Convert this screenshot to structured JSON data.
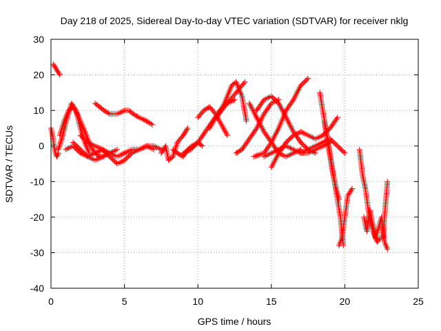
{
  "chart_data": {
    "type": "scatter",
    "title": "Day 218 of 2025, Sidereal Day-to-day VTEC variation (SDTVAR) for receiver nklg",
    "xlabel": "GPS time / hours",
    "ylabel": "SDTVAR / TECUs",
    "xlim": [
      0,
      25
    ],
    "ylim": [
      -40,
      30
    ],
    "xticks": [
      "0",
      "5",
      "10",
      "15",
      "20",
      "25"
    ],
    "yticks": [
      "30",
      "20",
      "10",
      "0",
      "-10",
      "-20",
      "-30",
      "-40"
    ],
    "grid": true,
    "marker": "plus",
    "color": "#ff0000",
    "tracks": [
      {
        "x": [
          0.0,
          0.1,
          0.2,
          0.3,
          0.4,
          0.5
        ],
        "y": [
          5,
          3,
          0,
          -2,
          -3,
          -2
        ]
      },
      {
        "x": [
          0.15,
          0.3,
          0.45,
          0.6
        ],
        "y": [
          23,
          22,
          21,
          20
        ]
      },
      {
        "x": [
          0.5,
          0.8,
          1.1,
          1.4,
          1.7,
          2.0,
          2.3,
          2.6
        ],
        "y": [
          -1,
          3,
          8,
          12,
          10,
          5,
          1,
          -2
        ]
      },
      {
        "x": [
          0.6,
          0.9,
          1.2,
          1.5,
          1.8,
          2.1,
          2.4,
          2.7,
          3.0,
          3.3,
          3.6
        ],
        "y": [
          3,
          7,
          10,
          11,
          9,
          6,
          3,
          0,
          -2,
          -3,
          -3
        ]
      },
      {
        "x": [
          1.0,
          1.5,
          2.0,
          2.5,
          3.0,
          3.5,
          4.0,
          4.5,
          5.0,
          5.5,
          6.0,
          6.5,
          7.0
        ],
        "y": [
          -1,
          0,
          -2,
          -3,
          -2,
          -1,
          -2,
          -3,
          -2,
          -1,
          -1,
          0,
          -1
        ]
      },
      {
        "x": [
          1.5,
          2.0,
          2.5,
          3.0,
          3.5,
          4.0,
          4.5
        ],
        "y": [
          1,
          -1,
          -3,
          -4,
          -3,
          -2,
          -1
        ]
      },
      {
        "x": [
          2.0,
          2.5,
          3.0,
          3.5,
          4.0
        ],
        "y": [
          3,
          1,
          0,
          -1,
          -2
        ]
      },
      {
        "x": [
          3.0,
          3.3,
          3.6,
          4.0,
          4.5,
          5.0,
          5.3,
          5.6,
          6.0,
          6.5,
          6.9
        ],
        "y": [
          12,
          11,
          10,
          9,
          9,
          10,
          10,
          9,
          8,
          7,
          6
        ]
      },
      {
        "x": [
          3.5,
          4.0,
          4.5,
          5.0,
          5.5,
          6.0,
          6.5,
          7.0,
          7.5
        ],
        "y": [
          -1,
          -3,
          -5,
          -4,
          -2,
          -1,
          0,
          0,
          -1
        ]
      },
      {
        "x": [
          7.5,
          7.8,
          8.0,
          8.3,
          8.6,
          9.0,
          9.3
        ],
        "y": [
          -2,
          0,
          -4,
          -3,
          1,
          3,
          5
        ]
      },
      {
        "x": [
          8.3,
          8.6,
          9.0,
          9.3,
          9.6,
          10.0,
          10.3
        ],
        "y": [
          -1,
          -2,
          -3,
          -1,
          0,
          1,
          0
        ]
      },
      {
        "x": [
          9.0,
          9.5,
          10.0,
          10.5,
          11.0,
          11.5,
          12.0,
          12.5
        ],
        "y": [
          -2,
          -1,
          1,
          4,
          7,
          10,
          12,
          13
        ]
      },
      {
        "x": [
          10.0,
          10.4,
          10.8,
          11.2,
          11.6,
          12.0
        ],
        "y": [
          8,
          10,
          11,
          9,
          6,
          3
        ]
      },
      {
        "x": [
          10.8,
          11.2,
          11.6,
          12.0,
          12.4,
          12.8,
          13.2
        ],
        "y": [
          5,
          8,
          10,
          12,
          14,
          16,
          18
        ]
      },
      {
        "x": [
          11.3,
          11.8,
          12.3,
          12.6,
          13.0,
          13.3
        ],
        "y": [
          8,
          12,
          17,
          18,
          14,
          7
        ]
      },
      {
        "x": [
          12.6,
          13.0,
          13.5,
          14.0,
          14.5,
          15.0,
          15.5
        ],
        "y": [
          -2,
          -1,
          2,
          5,
          9,
          12,
          13
        ]
      },
      {
        "x": [
          13.5,
          14.0,
          14.5,
          15.0,
          15.5,
          16.0,
          16.5,
          17.0
        ],
        "y": [
          12,
          8,
          4,
          1,
          -2,
          -3,
          -2,
          -1
        ]
      },
      {
        "x": [
          13.8,
          14.5,
          15.0,
          15.5,
          16.0,
          16.5,
          17.0,
          17.5
        ],
        "y": [
          -3,
          -2,
          1,
          5,
          10,
          13,
          17,
          19
        ]
      },
      {
        "x": [
          14.0,
          14.5,
          15.0,
          15.5,
          16.0,
          16.5,
          17.0,
          17.5,
          18.0
        ],
        "y": [
          10,
          13,
          14,
          12,
          8,
          4,
          1,
          -1,
          -2
        ]
      },
      {
        "x": [
          14.5,
          15.0,
          15.5,
          16.0,
          16.5,
          17.0,
          17.5,
          18.0,
          18.5,
          19.0
        ],
        "y": [
          -3,
          -2,
          -1,
          0,
          -1,
          -2,
          -2,
          -1,
          0,
          1
        ]
      },
      {
        "x": [
          15.0,
          15.5,
          16.0,
          16.5,
          17.0,
          17.5,
          18.0,
          18.5,
          19.0,
          19.5
        ],
        "y": [
          -6,
          -2,
          1,
          3,
          4,
          3,
          2,
          3,
          5,
          8
        ]
      },
      {
        "x": [
          17.0,
          17.5,
          18.0,
          18.5,
          19.0,
          19.5,
          20.0
        ],
        "y": [
          -2,
          -1,
          0,
          1,
          2,
          0,
          -2
        ]
      },
      {
        "x": [
          18.3,
          18.5,
          18.7,
          18.9,
          19.1,
          19.3,
          19.5,
          19.7,
          19.9
        ],
        "y": [
          15,
          10,
          5,
          0,
          -5,
          -10,
          -15,
          -20,
          -28
        ]
      },
      {
        "x": [
          18.6,
          18.8,
          19.0,
          19.2,
          19.4,
          19.6
        ],
        "y": [
          7,
          2,
          -3,
          -8,
          -12,
          -15
        ]
      },
      {
        "x": [
          19.6,
          19.8,
          20.0,
          20.2,
          20.5
        ],
        "y": [
          -28,
          -26,
          -20,
          -14,
          -12
        ]
      },
      {
        "x": [
          21.0,
          21.2,
          21.4,
          21.6,
          21.8,
          22.0,
          22.2,
          22.4
        ],
        "y": [
          -1,
          -8,
          -12,
          -18,
          -22,
          -25,
          -27,
          -26
        ]
      },
      {
        "x": [
          21.3,
          21.5,
          21.7,
          21.9,
          22.1,
          22.3,
          22.5,
          22.7,
          22.9
        ],
        "y": [
          -20,
          -24,
          -18,
          -22,
          -26,
          -23,
          -20,
          -27,
          -29
        ]
      },
      {
        "x": [
          22.6,
          22.7,
          22.8,
          22.9
        ],
        "y": [
          -26,
          -20,
          -15,
          -10
        ]
      }
    ]
  }
}
